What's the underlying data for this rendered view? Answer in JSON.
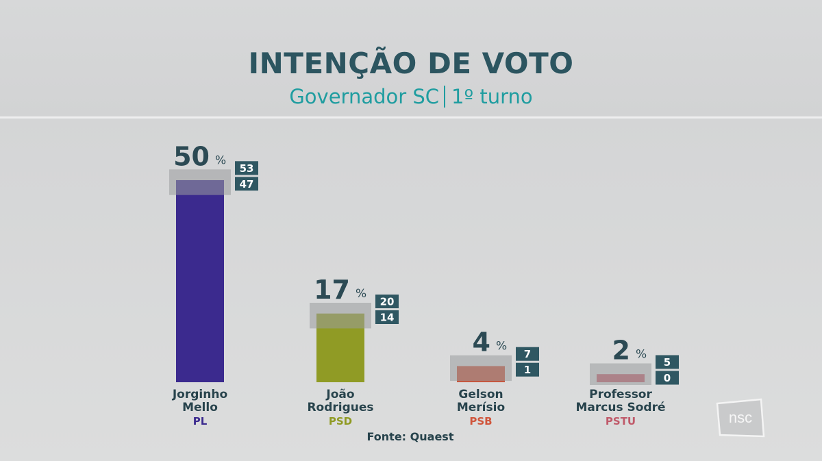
{
  "header": {
    "title": "INTENÇÃO DE VOTO",
    "subtitle_left": "Governador SC",
    "subtitle_right": "1º turno"
  },
  "source": "Fonte: Quaest",
  "logo": {
    "text": "nsc"
  },
  "colors": {
    "title": "#2c5560",
    "subtitle": "#1f9da0",
    "value_text": "#2c4a54",
    "range_box": "#2f5762"
  },
  "chart_data": {
    "type": "bar",
    "title": "INTENÇÃO DE VOTO",
    "subtitle": "Governador SC | 1º turno",
    "unit": "%",
    "categories": [
      "Jorginho Mello",
      "João Rodrigues",
      "Gelson Merísio",
      "Professor Marcus Sodré"
    ],
    "name_lines": [
      [
        "Jorginho",
        "Mello"
      ],
      [
        "João",
        "Rodrigues"
      ],
      [
        "Gelson",
        "Merísio"
      ],
      [
        "Professor",
        "Marcus Sodré"
      ]
    ],
    "parties": [
      "PL",
      "PSD",
      "PSB",
      "PSTU"
    ],
    "party_colors": [
      "#3b2a8e",
      "#8f9a22",
      "#d0553b",
      "#c05a6a"
    ],
    "bar_colors": [
      "#3b2a8e",
      "#909b25",
      "#c6553c",
      "#c2636f"
    ],
    "values": [
      50,
      17,
      4,
      2
    ],
    "upper": [
      53,
      20,
      7,
      5
    ],
    "lower": [
      47,
      14,
      1,
      0
    ],
    "ylim": [
      0,
      53
    ],
    "grid": false,
    "legend": "none"
  }
}
